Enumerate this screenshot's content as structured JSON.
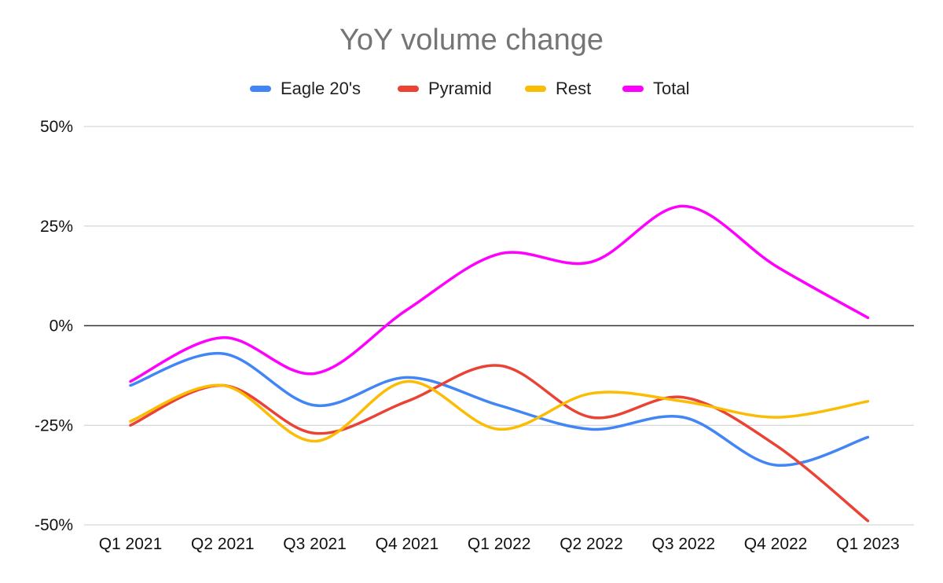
{
  "chart_data": {
    "type": "line",
    "title": "YoY volume change",
    "xlabel": "",
    "ylabel": "",
    "categories": [
      "Q1 2021",
      "Q2 2021",
      "Q3 2021",
      "Q4 2021",
      "Q1 2022",
      "Q2 2022",
      "Q3 2022",
      "Q4 2022",
      "Q1 2023"
    ],
    "ylim": [
      -50,
      50
    ],
    "yticks": [
      50,
      25,
      0,
      -25,
      -50
    ],
    "ytick_labels": [
      "50%",
      "25%",
      "0%",
      "-25%",
      "-50%"
    ],
    "grid": true,
    "legend_position": "top",
    "series": [
      {
        "name": "Eagle 20's",
        "color": "#4285F4",
        "values": [
          -15,
          -7,
          -20,
          -13,
          -20,
          -26,
          -23,
          -35,
          -28
        ]
      },
      {
        "name": "Pyramid",
        "color": "#EA4335",
        "values": [
          -25,
          -15,
          -27,
          -19,
          -10,
          -23,
          -18,
          -30,
          -49
        ]
      },
      {
        "name": "Rest",
        "color": "#FBBC04",
        "values": [
          -24,
          -15,
          -29,
          -14,
          -26,
          -17,
          -19,
          -23,
          -19
        ]
      },
      {
        "name": "Total",
        "color": "#FF00FF",
        "values": [
          -14,
          -3,
          -12,
          4,
          18,
          16,
          30,
          15,
          2
        ]
      }
    ]
  }
}
